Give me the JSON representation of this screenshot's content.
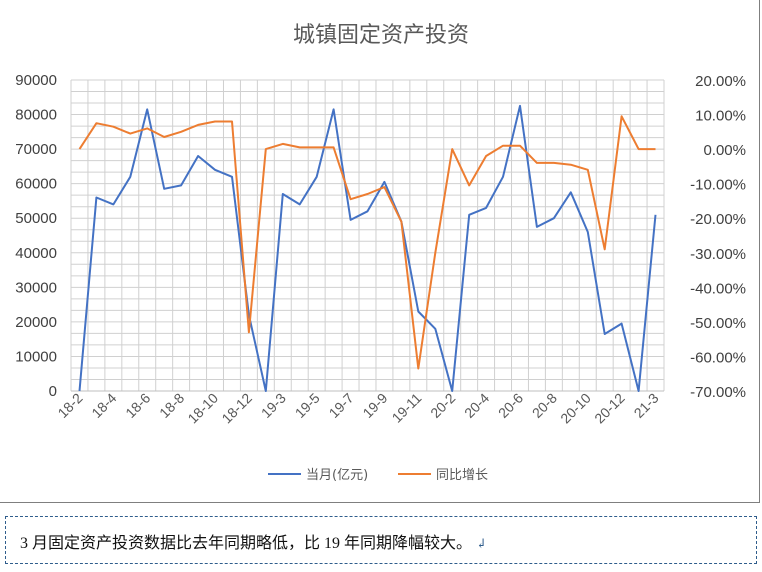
{
  "chart_data": {
    "type": "line",
    "title": "城镇固定资产投资",
    "x": [
      "18-2",
      "18-3",
      "18-4",
      "18-5",
      "18-6",
      "18-7",
      "18-8",
      "18-9",
      "18-10",
      "18-11",
      "18-12",
      "19-2",
      "19-3",
      "19-4",
      "19-5",
      "19-6",
      "19-7",
      "19-8",
      "19-9",
      "19-10",
      "19-11",
      "19-12",
      "20-2",
      "20-3",
      "20-4",
      "20-5",
      "20-6",
      "20-7",
      "20-8",
      "20-9",
      "20-10",
      "20-11",
      "20-12",
      "21-2",
      "21-3"
    ],
    "x_tick_labels": [
      "18-2",
      "18-4",
      "18-6",
      "18-8",
      "18-10",
      "18-12",
      "19-3",
      "19-5",
      "19-7",
      "19-9",
      "19-11",
      "20-2",
      "20-4",
      "20-6",
      "20-8",
      "20-10",
      "20-12",
      "21-3"
    ],
    "y_left": {
      "ylim": [
        0,
        90000
      ],
      "ticks": [
        "0",
        "10000",
        "20000",
        "30000",
        "40000",
        "50000",
        "60000",
        "70000",
        "80000",
        "90000"
      ]
    },
    "y_right": {
      "ylim": [
        -70,
        20
      ],
      "ticks": [
        "-70.00%",
        "-60.00%",
        "-50.00%",
        "-40.00%",
        "-30.00%",
        "-20.00%",
        "-10.00%",
        "0.00%",
        "10.00%",
        "20.00%"
      ]
    },
    "series": [
      {
        "name": "当月(亿元)",
        "axis": "left",
        "color": "#4472c4",
        "values": [
          0,
          56000,
          54000,
          62000,
          81500,
          58500,
          59500,
          68000,
          64000,
          62000,
          22000,
          0,
          57000,
          54000,
          62000,
          81500,
          49500,
          52000,
          60500,
          49000,
          23000,
          18000,
          0,
          51000,
          53000,
          62000,
          82500,
          47500,
          50000,
          57500,
          46000,
          16500,
          19500,
          0,
          51000
        ]
      },
      {
        "name": "同比增长",
        "axis": "right",
        "color": "#ed7d31",
        "values": [
          0,
          7.5,
          6.5,
          4.5,
          6,
          3.5,
          5,
          7,
          8,
          8,
          -53,
          0,
          1.5,
          0.5,
          0.5,
          0.5,
          -14.5,
          -13,
          -11,
          -21,
          -63.5,
          -30,
          0,
          -10.5,
          -2,
          1,
          1,
          -4,
          -4,
          -4.5,
          -6,
          -29,
          9.5,
          0,
          0
        ]
      }
    ],
    "grid": true,
    "legend_position": "bottom"
  },
  "caption": {
    "text": "3 月固定资产投资数据比去年同期略低，比 19 年同期降幅较大。",
    "mark": "↲"
  }
}
